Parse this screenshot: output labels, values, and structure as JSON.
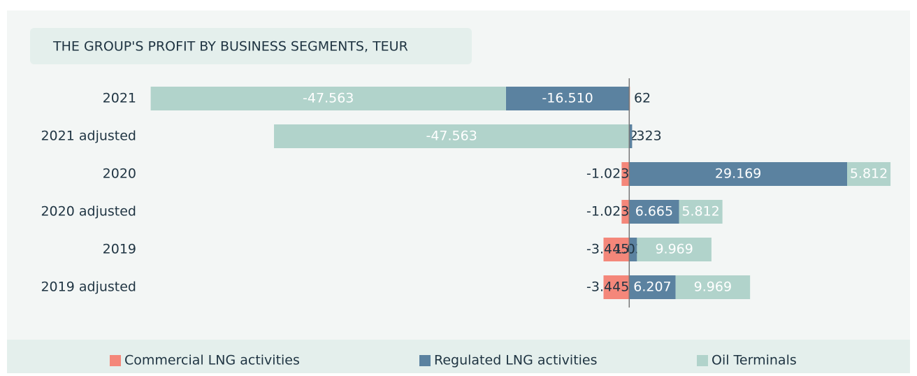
{
  "chart_data": {
    "type": "stacked-bar-horizontal",
    "title": "THE GROUP'S PROFIT BY BUSINESS SEGMENTS, TEUR",
    "categories": [
      "2021",
      "2021 adjusted",
      "2020",
      "2020 adjusted",
      "2019",
      "2019 adjusted"
    ],
    "series": [
      {
        "name": "Commercial LNG activities",
        "color": "#f4877a",
        "values": [
          62,
          62,
          -1023,
          -1023,
          -3445,
          -3445
        ],
        "value_labels": [
          "62",
          "62",
          "-1.023",
          "-1.023",
          "-3.445",
          "-3.445"
        ]
      },
      {
        "name": "Regulated LNG activities",
        "color": "#5b82a0",
        "values": [
          -16510,
          323,
          29169,
          6665,
          1037,
          6207
        ],
        "value_labels": [
          "-16.510",
          "323",
          "29.169",
          "6.665",
          "1.037",
          "6.207"
        ]
      },
      {
        "name": "Oil Terminals",
        "color": "#b1d3cb",
        "values": [
          -47563,
          -47563,
          5812,
          5812,
          9969,
          9969
        ],
        "value_labels": [
          "-47.563",
          "-47.563",
          "5.812",
          "5.812",
          "9.969",
          "9.969"
        ]
      }
    ],
    "xlim": [
      -66000,
      36000
    ],
    "legend": "bottom"
  }
}
